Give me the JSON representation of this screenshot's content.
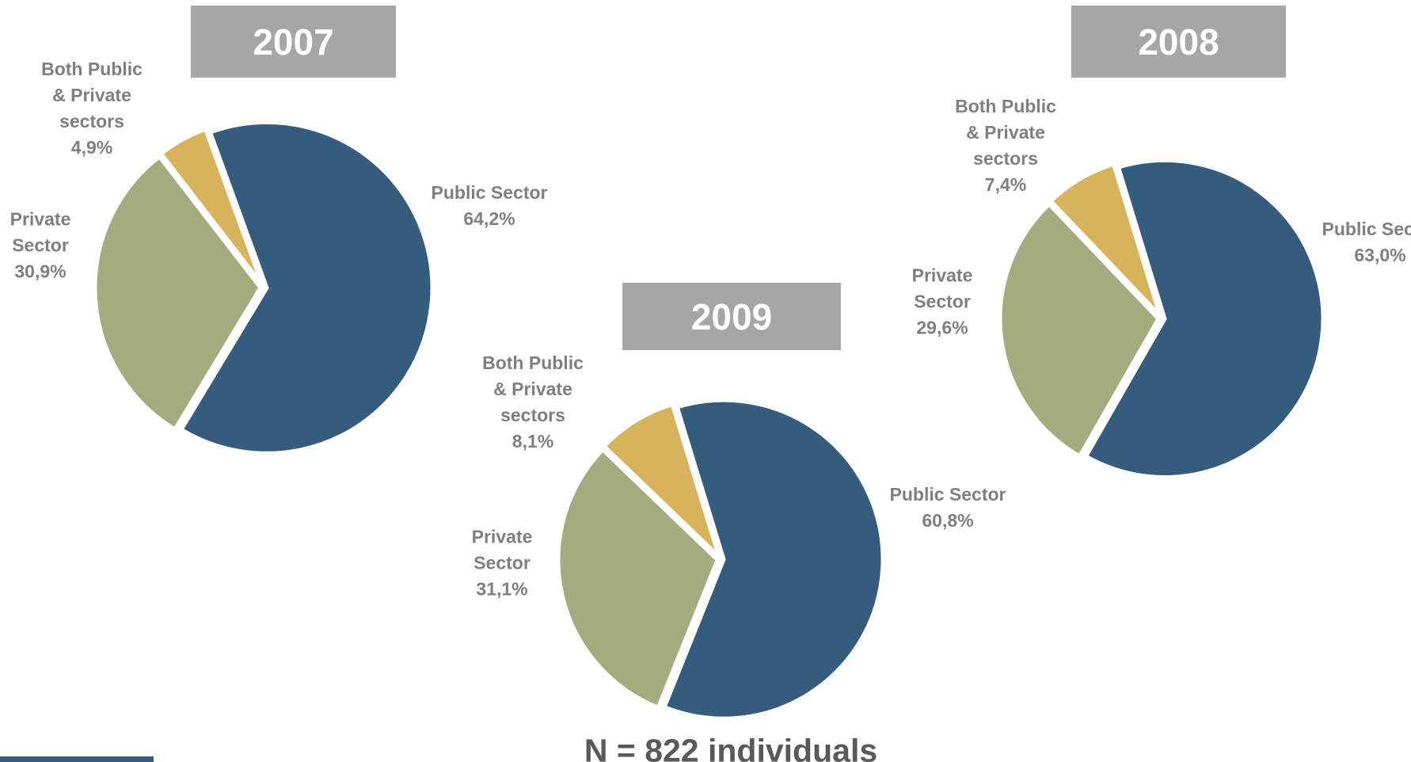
{
  "chart_data": [
    {
      "type": "pie",
      "title": "2007",
      "categories": [
        "Public Sector",
        "Private Sector",
        "Both Public & Private sectors"
      ],
      "values": [
        64.2,
        30.9,
        4.9
      ],
      "value_labels": [
        "64,2%",
        "30,9%",
        "4,9%"
      ],
      "colors": [
        "#355c7d",
        "#a3ab7f",
        "#d8b35e"
      ]
    },
    {
      "type": "pie",
      "title": "2008",
      "categories": [
        "Public Sector",
        "Private Sector",
        "Both Public & Private sectors"
      ],
      "values": [
        63.0,
        29.6,
        7.4
      ],
      "value_labels": [
        "63,0%",
        "29,6%",
        "7,4%"
      ],
      "colors": [
        "#355c7d",
        "#a3ab7f",
        "#d8b35e"
      ]
    },
    {
      "type": "pie",
      "title": "2009",
      "categories": [
        "Public Sector",
        "Private Sector",
        "Both Public & Private sectors"
      ],
      "values": [
        60.8,
        31.1,
        8.1
      ],
      "value_labels": [
        "60,8%",
        "31,1%",
        "8,1%"
      ],
      "colors": [
        "#355c7d",
        "#a3ab7f",
        "#d8b35e"
      ]
    }
  ],
  "footnote": "N = 822 individuals"
}
